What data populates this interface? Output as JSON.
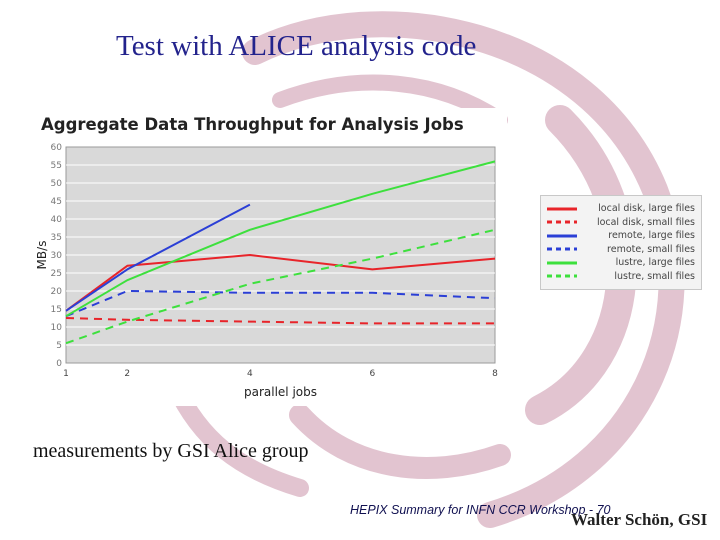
{
  "slide": {
    "title": "Test with ALICE analysis code",
    "caption": "measurements by GSI Alice group",
    "author": "Walter Schön, GSI",
    "footer": "HEPIX Summary for INFN CCR Workshop - 70"
  },
  "colors": {
    "background_swirl": "#e2c4d0",
    "title": "#23238c",
    "plot_background": "#d9d9d9",
    "red": "#e8242a",
    "blue": "#2b3fd6",
    "green": "#3de03d"
  },
  "chart_data": {
    "type": "line",
    "title": "Aggregate Data Throughput for Analysis Jobs",
    "xlabel": "parallel jobs",
    "ylabel": "MB/s",
    "xlim": [
      1,
      8
    ],
    "ylim": [
      0,
      60
    ],
    "xticks": [
      1,
      2,
      4,
      6,
      8
    ],
    "yticks": [
      0,
      5,
      10,
      15,
      20,
      25,
      30,
      35,
      40,
      45,
      50,
      55,
      60
    ],
    "grid": true,
    "legend_position": "right, outside plot",
    "series": [
      {
        "name": "local disk, large files",
        "color": "#e8242a",
        "dash": "solid",
        "x": [
          1,
          2,
          4,
          6,
          8
        ],
        "y": [
          14.5,
          27,
          30,
          26,
          29
        ]
      },
      {
        "name": "local disk, small files",
        "color": "#e8242a",
        "dash": "dashed",
        "x": [
          1,
          2,
          4,
          6,
          8
        ],
        "y": [
          12.5,
          12,
          11.5,
          11,
          11
        ]
      },
      {
        "name": "remote, large files",
        "color": "#2b3fd6",
        "dash": "solid",
        "x": [
          1,
          2,
          4
        ],
        "y": [
          14.5,
          26,
          44
        ]
      },
      {
        "name": "remote, small files",
        "color": "#2b3fd6",
        "dash": "dashed",
        "x": [
          1,
          2,
          4,
          6,
          8
        ],
        "y": [
          13,
          20,
          19.5,
          19.5,
          18
        ]
      },
      {
        "name": "lustre, large files",
        "color": "#3de03d",
        "dash": "solid",
        "x": [
          1,
          2,
          4,
          6,
          8
        ],
        "y": [
          13,
          23,
          37,
          47,
          56
        ]
      },
      {
        "name": "lustre, small files",
        "color": "#3de03d",
        "dash": "dashed",
        "x": [
          1,
          2,
          4,
          6,
          8
        ],
        "y": [
          5.5,
          11.5,
          22,
          29,
          37
        ]
      }
    ]
  }
}
